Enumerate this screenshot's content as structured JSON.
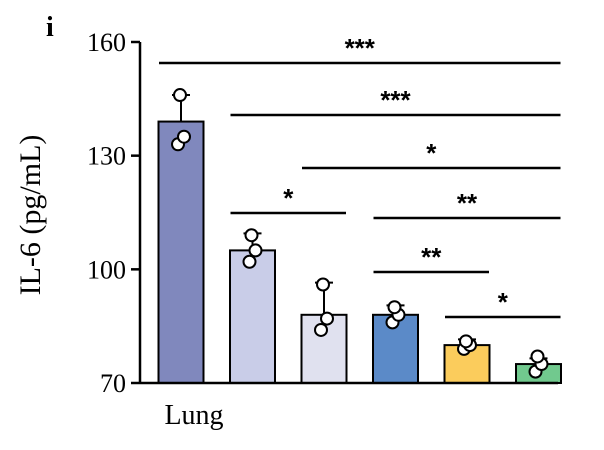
{
  "chart_data": {
    "type": "bar",
    "panel_label": "i",
    "ylabel": "IL-6 (pg/mL)",
    "xlabel": "Lung",
    "ylim": [
      70,
      160
    ],
    "yticks": [
      70,
      100,
      130,
      160
    ],
    "categories": [
      "",
      "",
      "",
      "",
      "",
      ""
    ],
    "values": [
      139,
      105,
      88,
      88,
      80,
      75
    ],
    "errors": [
      7,
      4.5,
      8.5,
      2.5,
      1.5,
      1.5
    ],
    "colors": [
      "#8088bd",
      "#c9cde8",
      "#e0e1ef",
      "#5b8ac8",
      "#fbcc5c",
      "#71c98e"
    ],
    "points": [
      [
        133,
        135,
        146
      ],
      [
        102,
        105,
        109
      ],
      [
        84,
        87,
        96
      ],
      [
        86,
        88,
        90
      ],
      [
        79,
        80,
        81
      ],
      [
        73,
        75,
        77
      ]
    ],
    "significance": [
      {
        "from": 0,
        "to": 5,
        "label": "***"
      },
      {
        "from": 1,
        "to": 5,
        "label": "***"
      },
      {
        "from": 2,
        "to": 5,
        "label": "*"
      },
      {
        "from": 1,
        "to": 2,
        "label": "*"
      },
      {
        "from": 3,
        "to": 5,
        "label": "**"
      },
      {
        "from": 3,
        "to": 4,
        "label": "**"
      },
      {
        "from": 4,
        "to": 5,
        "label": "*"
      }
    ]
  }
}
